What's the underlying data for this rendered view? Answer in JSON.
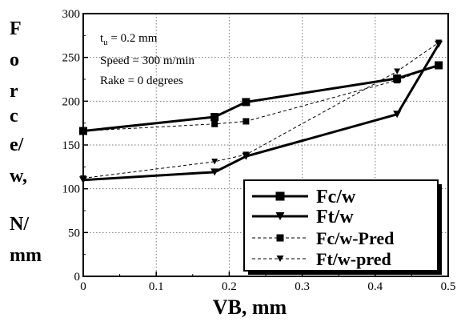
{
  "chart_data": {
    "type": "line",
    "xlabel": "VB, mm",
    "ylabel_lines": [
      "F",
      "o",
      "r",
      "c",
      "e/",
      "w,",
      "",
      "N/",
      "mm"
    ],
    "xlim": [
      0,
      0.5
    ],
    "ylim": [
      0,
      300
    ],
    "x_ticks": [
      "0",
      "0.1",
      "0.2",
      "0.3",
      "0.4",
      "0.5"
    ],
    "y_ticks": [
      "0",
      "50",
      "100",
      "150",
      "200",
      "250",
      "300"
    ],
    "grid": true,
    "legend_position": "bottom-right",
    "annotations": {
      "tu": "t",
      "tu_sub": "u",
      "tu_rest": " = 0.2 mm",
      "speed": "Speed = 300 m/min",
      "rake": "Rake = 0 degrees"
    },
    "series": [
      {
        "name": "Fc/w",
        "style": "solid",
        "marker": "square",
        "x": [
          0,
          0.18,
          0.223,
          0.43,
          0.487
        ],
        "y": [
          166,
          182,
          199,
          226,
          241
        ]
      },
      {
        "name": "Ft/w",
        "style": "solid",
        "marker": "triangle-down",
        "x": [
          0,
          0.18,
          0.223,
          0.43,
          0.487
        ],
        "y": [
          110,
          119,
          137,
          185,
          265
        ]
      },
      {
        "name": "Fc/w-Pred",
        "style": "dashed",
        "marker": "square",
        "x": [
          0,
          0.18,
          0.223,
          0.43,
          0.487
        ],
        "y": [
          166,
          174,
          177,
          224,
          241
        ]
      },
      {
        "name": "Ft/w-pred",
        "style": "dashed",
        "marker": "triangle-down",
        "x": [
          0,
          0.18,
          0.223,
          0.43,
          0.487
        ],
        "y": [
          112,
          131,
          139,
          234,
          267
        ]
      }
    ]
  }
}
